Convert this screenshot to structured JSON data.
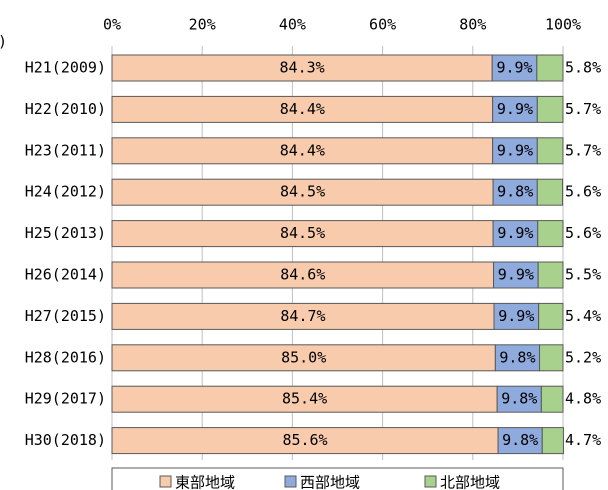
{
  "chart_data": {
    "type": "stacked_barh",
    "annotation": ")",
    "categories": [
      "H21(2009)",
      "H22(2010)",
      "H23(2011)",
      "H24(2012)",
      "H25(2013)",
      "H26(2014)",
      "H27(2015)",
      "H28(2016)",
      "H29(2017)",
      "H30(2018)"
    ],
    "series": [
      {
        "name": "東部地域",
        "color": "#f8cbad",
        "values": [
          84.3,
          84.4,
          84.4,
          84.5,
          84.5,
          84.6,
          84.7,
          85.0,
          85.4,
          85.6
        ],
        "value_labels": [
          "84.3%",
          "84.4%",
          "84.4%",
          "84.5%",
          "84.5%",
          "84.6%",
          "84.7%",
          "85.0%",
          "85.4%",
          "85.6%"
        ]
      },
      {
        "name": "西部地域",
        "color": "#8faadc",
        "values": [
          9.9,
          9.9,
          9.9,
          9.8,
          9.9,
          9.9,
          9.9,
          9.8,
          9.8,
          9.8
        ],
        "value_labels": [
          "9.9%",
          "9.9%",
          "9.9%",
          "9.8%",
          "9.9%",
          "9.9%",
          "9.9%",
          "9.8%",
          "9.8%",
          "9.8%"
        ]
      },
      {
        "name": "北部地域",
        "color": "#a9d18e",
        "values": [
          5.8,
          5.7,
          5.7,
          5.6,
          5.6,
          5.5,
          5.4,
          5.2,
          4.8,
          4.7
        ],
        "value_labels": [
          "5.8%",
          "5.7%",
          "5.7%",
          "5.6%",
          "5.6%",
          "5.5%",
          "5.4%",
          "5.2%",
          "4.8%",
          "4.7%"
        ]
      }
    ],
    "xlim": [
      0,
      100
    ],
    "xticks": [
      {
        "value": 0,
        "label": "0%"
      },
      {
        "value": 20,
        "label": "20%"
      },
      {
        "value": 40,
        "label": "40%"
      },
      {
        "value": 60,
        "label": "60%"
      },
      {
        "value": 80,
        "label": "80%"
      },
      {
        "value": 100,
        "label": "100%"
      }
    ],
    "grid": true,
    "legend": "bottom"
  }
}
